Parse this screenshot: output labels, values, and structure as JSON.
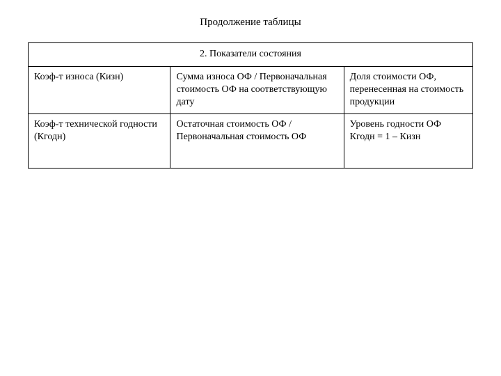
{
  "title": "Продолжение таблицы",
  "section_header": "2. Показатели состояния",
  "rows": [
    {
      "col1": "Коэф-т износа (Кизн)",
      "col2": "Сумма износа ОФ / Первоначальная стоимость ОФ на соответствующую дату",
      "col3": "Доля стоимости ОФ, перенесенная на стоимость продукции"
    },
    {
      "col1": "Коэф-т технической годности (Кгодн)",
      "col2": "Остаточная стоимость ОФ / Первоначальная стоимость ОФ",
      "col3": "Уровень годности ОФ\nКгодн = 1 – Кизн"
    }
  ],
  "style": {
    "font_family": "Times New Roman",
    "title_fontsize": 15,
    "cell_fontsize": 14,
    "border_color": "#000000",
    "background_color": "#ffffff",
    "text_color": "#000000",
    "column_widths_pct": [
      32,
      39,
      29
    ]
  }
}
